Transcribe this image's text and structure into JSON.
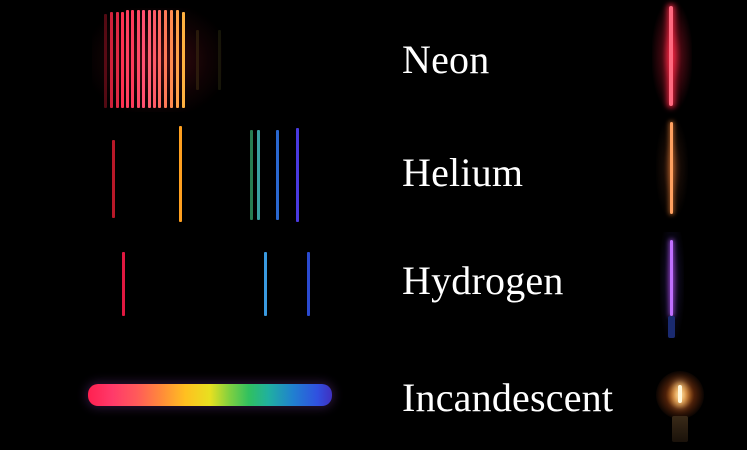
{
  "rows": [
    {
      "label": "Neon"
    },
    {
      "label": "Helium"
    },
    {
      "label": "Hydrogen"
    },
    {
      "label": "Incandescent"
    }
  ],
  "colors": {
    "background": "#000000",
    "label_text": "#ffffff",
    "neon_tube": "#ff2a4a",
    "helium_tube": "#ff8a3a",
    "hydrogen_tube": "#c060ff",
    "bulb_glow": "#ffb060"
  }
}
